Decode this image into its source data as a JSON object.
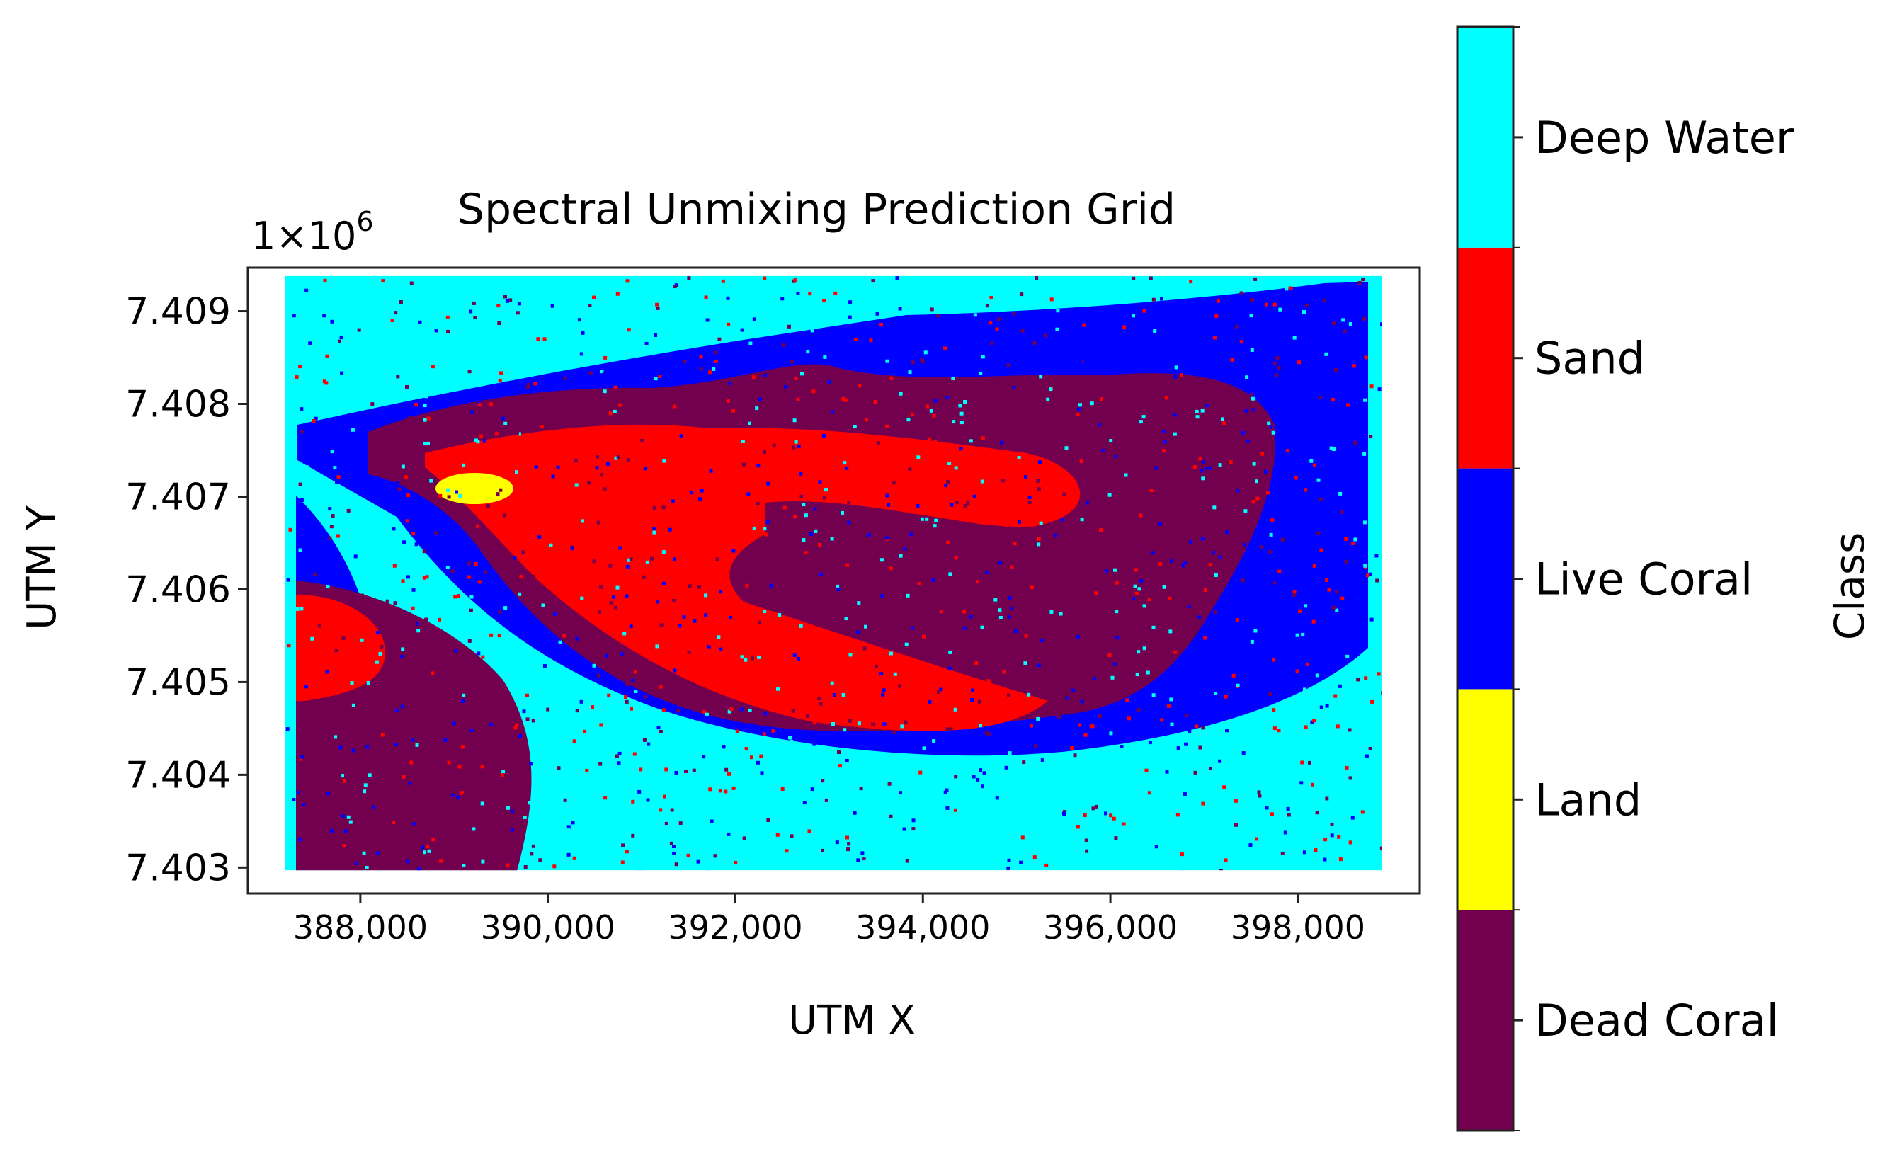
{
  "chart_data": {
    "type": "heatmap",
    "title": "Spectral Unmixing Prediction Grid",
    "xlabel": "UTM X",
    "ylabel": "UTM Y",
    "y_offset_label": "1×10",
    "y_offset_exponent": "6",
    "xlim": [
      386800,
      399300
    ],
    "ylim": [
      7.40272,
      7.40947
    ],
    "extent": {
      "x": [
        387200,
        398900
      ],
      "y": [
        7.40297,
        7.40938
      ]
    },
    "x_ticks": [
      {
        "value": 388000,
        "label": "388,000"
      },
      {
        "value": 390000,
        "label": "390,000"
      },
      {
        "value": 392000,
        "label": "392,000"
      },
      {
        "value": 394000,
        "label": "394,000"
      },
      {
        "value": 396000,
        "label": "396,000"
      },
      {
        "value": 398000,
        "label": "398,000"
      }
    ],
    "y_ticks": [
      {
        "value": 7.403,
        "label": "7.403"
      },
      {
        "value": 7.404,
        "label": "7.404"
      },
      {
        "value": 7.405,
        "label": "7.405"
      },
      {
        "value": 7.406,
        "label": "7.406"
      },
      {
        "value": 7.407,
        "label": "7.407"
      },
      {
        "value": 7.408,
        "label": "7.408"
      },
      {
        "value": 7.409,
        "label": "7.409"
      }
    ],
    "colorbar": {
      "label": "Class",
      "classes": [
        {
          "name": "Dead Coral",
          "color": "#73004f"
        },
        {
          "name": "Land",
          "color": "#ffff00"
        },
        {
          "name": "Live Coral",
          "color": "#0000ff"
        },
        {
          "name": "Sand",
          "color": "#ff0000"
        },
        {
          "name": "Deep Water",
          "color": "#00ffff"
        }
      ]
    },
    "grid": false
  }
}
